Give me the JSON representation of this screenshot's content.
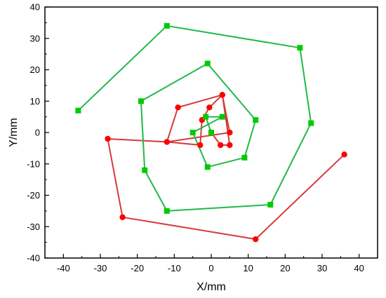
{
  "chart_data": {
    "type": "line",
    "title": "",
    "xlabel": "X/mm",
    "ylabel": "Y/mm",
    "xlim": [
      -45,
      45
    ],
    "ylim": [
      -40,
      40
    ],
    "xticks": [
      -40,
      -30,
      -20,
      -10,
      0,
      10,
      20,
      30,
      40
    ],
    "yticks": [
      -40,
      -30,
      -20,
      -10,
      0,
      10,
      20,
      30,
      40
    ],
    "grid": false,
    "legend": "none",
    "series": [
      {
        "color": "#ff0000",
        "line_color": "#d73a3a",
        "marker": "circle",
        "x": [
          0,
          2.5,
          5,
          3,
          -0.5,
          -2.5,
          -3,
          -12,
          -9,
          3,
          5,
          -12,
          -28,
          -24,
          12,
          36
        ],
        "y": [
          0,
          -4,
          -4,
          12,
          8,
          4,
          -4,
          -3,
          8,
          12,
          0,
          -3,
          -2,
          -27,
          -34,
          -7
        ]
      },
      {
        "color": "#00cc00",
        "line_color": "#22b84a",
        "marker": "square",
        "x": [
          0,
          -1.5,
          3,
          -5,
          -1,
          9,
          12,
          -1,
          -19,
          -18,
          -12,
          16,
          27,
          24,
          -12,
          -36
        ],
        "y": [
          0,
          5,
          5,
          0,
          -11,
          -8,
          4,
          22,
          10,
          -12,
          -25,
          -23,
          3,
          27,
          34,
          7
        ]
      }
    ]
  }
}
